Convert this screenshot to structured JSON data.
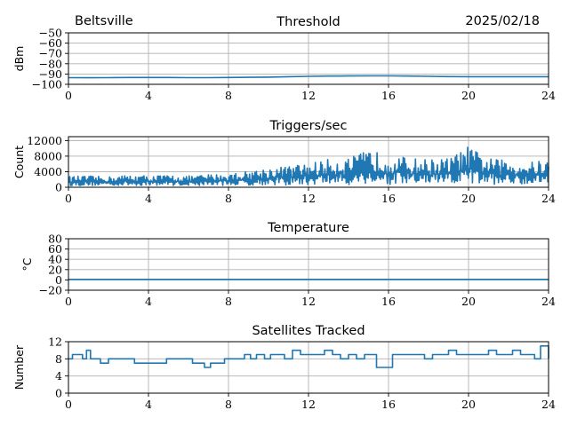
{
  "header": {
    "station": "Beltsville",
    "date": "2025/02/18"
  },
  "chart_data": [
    {
      "type": "line",
      "title": "Threshold",
      "ylabel": "dBm",
      "xlim": [
        0,
        24
      ],
      "x_ticks": [
        "0",
        "4",
        "8",
        "12",
        "16",
        "20",
        "24"
      ],
      "ylim": [
        -100,
        -50
      ],
      "y_ticks": [
        "−50",
        "−60",
        "−70",
        "−80",
        "−90",
        "−100"
      ],
      "y_tick_values": [
        -50,
        -60,
        -70,
        -80,
        -90,
        -100
      ],
      "grid": true,
      "color": "#1f77b4",
      "series": [
        {
          "x": [
            0,
            1,
            2,
            3,
            4,
            5,
            6,
            7,
            8,
            9,
            10,
            11,
            12,
            13,
            14,
            15,
            16,
            17,
            18,
            19,
            20,
            21,
            22,
            23,
            24
          ],
          "values": [
            -93.5,
            -93.6,
            -93.5,
            -93.4,
            -93.4,
            -93.4,
            -93.5,
            -93.5,
            -93.4,
            -93.2,
            -93.0,
            -92.6,
            -92.2,
            -92.0,
            -91.9,
            -91.8,
            -91.8,
            -92.0,
            -92.2,
            -92.5,
            -92.6,
            -92.6,
            -92.6,
            -92.6,
            -92.6
          ]
        }
      ]
    },
    {
      "type": "line",
      "title": "Triggers/sec",
      "ylabel": "Count",
      "xlim": [
        0,
        24
      ],
      "x_ticks": [
        "0",
        "4",
        "8",
        "12",
        "16",
        "20",
        "24"
      ],
      "ylim": [
        0,
        13000
      ],
      "y_ticks": [
        "12000",
        "8000",
        "4000",
        "0"
      ],
      "y_tick_values": [
        12000,
        8000,
        4000,
        0
      ],
      "grid": true,
      "color": "#1f77b4",
      "series": [
        {
          "x": [
            0,
            1,
            2,
            3,
            4,
            5,
            6,
            7,
            8,
            9,
            10,
            11,
            12,
            13,
            14,
            15,
            16,
            17,
            18,
            19,
            20,
            21,
            22,
            23,
            24
          ],
          "min": [
            400,
            400,
            500,
            400,
            500,
            500,
            400,
            500,
            500,
            500,
            600,
            500,
            600,
            700,
            600,
            800,
            600,
            700,
            800,
            600,
            800,
            700,
            800,
            900,
            1000
          ],
          "max": [
            2800,
            2900,
            2700,
            3200,
            3000,
            3100,
            2900,
            3300,
            3500,
            4200,
            5000,
            5500,
            6200,
            7200,
            7500,
            9500,
            8500,
            7500,
            7200,
            7500,
            10500,
            7500,
            6800,
            6500,
            7000
          ]
        }
      ]
    },
    {
      "type": "line",
      "title": "Temperature",
      "ylabel": "°C",
      "xlim": [
        0,
        24
      ],
      "x_ticks": [
        "0",
        "4",
        "8",
        "12",
        "16",
        "20",
        "24"
      ],
      "ylim": [
        -20,
        80
      ],
      "y_ticks": [
        "80",
        "60",
        "40",
        "20",
        "0",
        "−20"
      ],
      "y_tick_values": [
        80,
        60,
        40,
        20,
        0,
        -20
      ],
      "grid": true,
      "color": "#1f77b4",
      "series": [
        {
          "x": [
            0,
            24
          ],
          "values": [
            1,
            1
          ]
        }
      ]
    },
    {
      "type": "line",
      "title": "Satellites Tracked",
      "ylabel": "Number",
      "xlim": [
        0,
        24
      ],
      "x_ticks": [
        "0",
        "4",
        "8",
        "12",
        "16",
        "20",
        "24"
      ],
      "ylim": [
        0,
        12
      ],
      "y_ticks": [
        "12",
        "8",
        "4",
        "0"
      ],
      "y_tick_values": [
        12,
        8,
        4,
        0
      ],
      "grid": true,
      "color": "#1f77b4",
      "series": [
        {
          "x": [
            0,
            0.2,
            0.4,
            0.7,
            0.9,
            1.1,
            1.3,
            1.6,
            2.0,
            2.4,
            2.8,
            3.0,
            3.3,
            3.6,
            4.0,
            4.4,
            4.9,
            5.3,
            5.5,
            5.8,
            6.2,
            6.5,
            6.8,
            7.1,
            7.4,
            7.8,
            8.1,
            8.4,
            8.8,
            9.1,
            9.4,
            9.8,
            10.1,
            10.4,
            10.8,
            11.2,
            11.6,
            12.0,
            12.4,
            12.8,
            13.2,
            13.6,
            14.0,
            14.4,
            14.8,
            15.1,
            15.4,
            15.8,
            16.2,
            16.6,
            17.0,
            17.4,
            17.8,
            18.2,
            18.6,
            19.0,
            19.4,
            19.8,
            20.2,
            20.6,
            21.0,
            21.4,
            21.8,
            22.2,
            22.6,
            23.0,
            23.3,
            23.6,
            24.0
          ],
          "values": [
            8,
            9,
            9,
            8,
            10,
            8,
            8,
            7,
            8,
            8,
            8,
            8,
            7,
            7,
            7,
            7,
            8,
            8,
            8,
            8,
            7,
            7,
            6,
            7,
            7,
            8,
            8,
            8,
            9,
            8,
            9,
            8,
            9,
            9,
            8,
            10,
            9,
            9,
            9,
            10,
            9,
            8,
            9,
            8,
            9,
            9,
            6,
            6,
            9,
            9,
            9,
            9,
            8,
            9,
            9,
            10,
            9,
            9,
            9,
            9,
            10,
            9,
            9,
            10,
            9,
            9,
            8,
            11,
            8
          ]
        }
      ]
    }
  ]
}
